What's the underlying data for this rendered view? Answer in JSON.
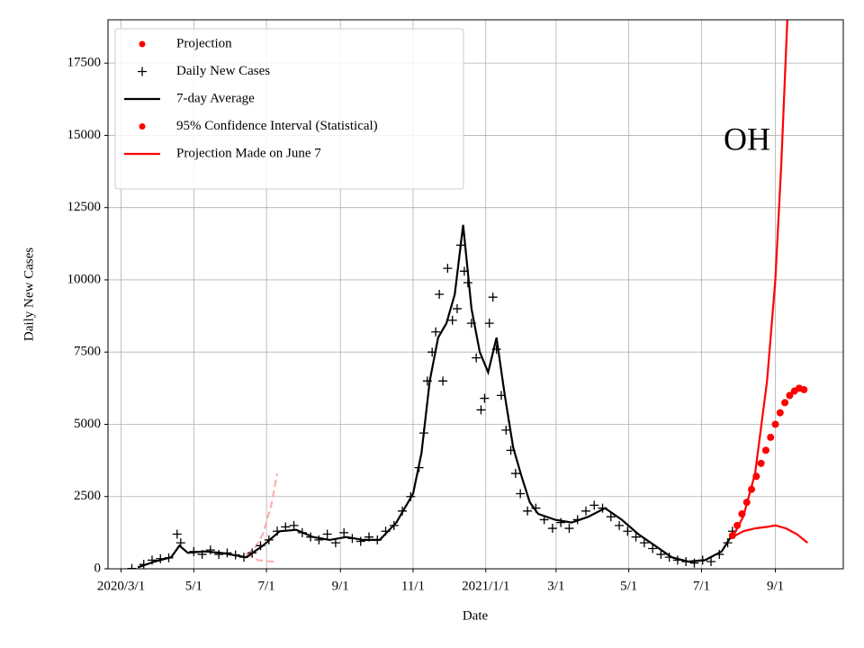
{
  "chart_data": {
    "type": "line",
    "annotation": "OH",
    "xlabel": "Date",
    "ylabel": "Daily New Cases",
    "xlim": [
      "2020-02-19",
      "2021-10-28"
    ],
    "ylim": [
      0,
      19000
    ],
    "xticks": [
      {
        "value": "2020-03-01",
        "label": "2020/3/1"
      },
      {
        "value": "2020-05-01",
        "label": "5/1"
      },
      {
        "value": "2020-07-01",
        "label": "7/1"
      },
      {
        "value": "2020-09-01",
        "label": "9/1"
      },
      {
        "value": "2020-11-01",
        "label": "11/1"
      },
      {
        "value": "2021-01-01",
        "label": "2021/1/1"
      },
      {
        "value": "2021-03-01",
        "label": "3/1"
      },
      {
        "value": "2021-05-01",
        "label": "5/1"
      },
      {
        "value": "2021-07-01",
        "label": "7/1"
      },
      {
        "value": "2021-09-01",
        "label": "9/1"
      }
    ],
    "yticks": [
      0,
      2500,
      5000,
      7500,
      10000,
      12500,
      15000,
      17500
    ],
    "grid": true,
    "legend": "upper left",
    "series": [
      {
        "name": "Projection",
        "color": "#ff0000",
        "marker": "dot",
        "x": [
          "2021-07-27",
          "2021-07-31",
          "2021-08-04",
          "2021-08-08",
          "2021-08-12",
          "2021-08-16",
          "2021-08-20",
          "2021-08-24",
          "2021-08-28",
          "2021-09-01",
          "2021-09-05",
          "2021-09-09",
          "2021-09-13",
          "2021-09-17",
          "2021-09-21",
          "2021-09-25"
        ],
        "values": [
          1150,
          1500,
          1900,
          2300,
          2750,
          3200,
          3650,
          4100,
          4550,
          5000,
          5400,
          5750,
          6000,
          6150,
          6250,
          6200
        ]
      },
      {
        "name": "Daily New Cases",
        "color": "#000000",
        "marker": "plus",
        "x": [
          "2020-03-10",
          "2020-03-20",
          "2020-03-27",
          "2020-04-03",
          "2020-04-10",
          "2020-04-17",
          "2020-04-20",
          "2020-05-01",
          "2020-05-08",
          "2020-05-15",
          "2020-05-22",
          "2020-05-29",
          "2020-06-05",
          "2020-06-12",
          "2020-06-19",
          "2020-06-26",
          "2020-07-03",
          "2020-07-10",
          "2020-07-17",
          "2020-07-24",
          "2020-07-31",
          "2020-08-07",
          "2020-08-14",
          "2020-08-21",
          "2020-08-28",
          "2020-09-04",
          "2020-09-11",
          "2020-09-18",
          "2020-09-25",
          "2020-10-02",
          "2020-10-09",
          "2020-10-16",
          "2020-10-23",
          "2020-10-30",
          "2020-11-06",
          "2020-11-10",
          "2020-11-13",
          "2020-11-17",
          "2020-11-20",
          "2020-11-23",
          "2020-11-26",
          "2020-11-30",
          "2020-12-04",
          "2020-12-08",
          "2020-12-11",
          "2020-12-14",
          "2020-12-17",
          "2020-12-20",
          "2020-12-24",
          "2020-12-28",
          "2020-12-31",
          "2021-01-04",
          "2021-01-07",
          "2021-01-10",
          "2021-01-14",
          "2021-01-18",
          "2021-01-22",
          "2021-01-26",
          "2021-01-30",
          "2021-02-05",
          "2021-02-12",
          "2021-02-19",
          "2021-02-26",
          "2021-03-05",
          "2021-03-12",
          "2021-03-19",
          "2021-03-26",
          "2021-04-02",
          "2021-04-09",
          "2021-04-16",
          "2021-04-23",
          "2021-04-30",
          "2021-05-07",
          "2021-05-14",
          "2021-05-21",
          "2021-05-28",
          "2021-06-04",
          "2021-06-11",
          "2021-06-18",
          "2021-06-25",
          "2021-07-02",
          "2021-07-09",
          "2021-07-16",
          "2021-07-23",
          "2021-07-27"
        ],
        "values": [
          10,
          150,
          300,
          350,
          380,
          1200,
          900,
          600,
          500,
          650,
          500,
          550,
          480,
          400,
          550,
          800,
          1000,
          1300,
          1450,
          1500,
          1250,
          1100,
          1000,
          1200,
          900,
          1250,
          1050,
          950,
          1100,
          1000,
          1300,
          1500,
          2000,
          2500,
          3500,
          4700,
          6500,
          7500,
          8200,
          9500,
          6500,
          10400,
          8600,
          9000,
          11200,
          10300,
          9900,
          8500,
          7300,
          5500,
          5900,
          8500,
          9400,
          7600,
          6000,
          4800,
          4100,
          3300,
          2600,
          2000,
          2100,
          1700,
          1400,
          1600,
          1400,
          1700,
          2000,
          2200,
          2100,
          1800,
          1500,
          1300,
          1100,
          900,
          700,
          500,
          400,
          300,
          250,
          200,
          300,
          250,
          500,
          900,
          1300
        ]
      },
      {
        "name": "7-day Average",
        "color": "#000000",
        "marker": "line",
        "x": [
          "2020-03-15",
          "2020-03-29",
          "2020-04-12",
          "2020-04-19",
          "2020-04-26",
          "2020-05-10",
          "2020-05-24",
          "2020-06-07",
          "2020-06-14",
          "2020-06-28",
          "2020-07-12",
          "2020-07-26",
          "2020-08-09",
          "2020-08-23",
          "2020-09-06",
          "2020-09-20",
          "2020-10-04",
          "2020-10-18",
          "2020-11-01",
          "2020-11-08",
          "2020-11-15",
          "2020-11-22",
          "2020-11-29",
          "2020-12-06",
          "2020-12-13",
          "2020-12-20",
          "2020-12-27",
          "2021-01-03",
          "2021-01-10",
          "2021-01-17",
          "2021-01-24",
          "2021-01-31",
          "2021-02-07",
          "2021-02-14",
          "2021-02-28",
          "2021-03-14",
          "2021-03-28",
          "2021-04-11",
          "2021-04-25",
          "2021-05-09",
          "2021-05-23",
          "2021-06-06",
          "2021-06-20",
          "2021-07-04",
          "2021-07-18",
          "2021-07-27"
        ],
        "values": [
          50,
          250,
          400,
          800,
          550,
          600,
          550,
          450,
          400,
          800,
          1300,
          1350,
          1100,
          1000,
          1100,
          1000,
          1000,
          1600,
          2600,
          4000,
          6500,
          8000,
          8500,
          9500,
          11900,
          9000,
          7500,
          6800,
          8000,
          6000,
          4200,
          3200,
          2300,
          1900,
          1700,
          1600,
          1800,
          2100,
          1700,
          1200,
          800,
          400,
          250,
          300,
          600,
          1200
        ]
      },
      {
        "name": "95% Confidence Interval (Statistical)",
        "color": "#ff0000",
        "marker": "dot",
        "x": [],
        "values": []
      },
      {
        "name": "Projection Made on June 7",
        "color": "#ff0000",
        "marker": "line",
        "x": [
          "2021-07-27",
          "2021-08-05",
          "2021-08-15",
          "2021-08-25",
          "2021-09-01",
          "2021-09-06",
          "2021-09-11",
          "2021-07-27",
          "2021-07-27",
          "2021-08-05",
          "2021-08-15",
          "2021-08-25",
          "2021-09-01",
          "2021-09-10",
          "2021-09-19",
          "2021-09-28"
        ],
        "values": [
          1100,
          1800,
          3300,
          6500,
          10000,
          14000,
          19000,
          null,
          1100,
          1300,
          1400,
          1450,
          1500,
          1400,
          1200,
          900
        ]
      },
      {
        "color": "#ffaaaa",
        "marker": "dashed",
        "x": [
          "2020-06-14",
          "2020-06-21",
          "2020-06-28",
          "2020-07-05",
          "2020-07-10",
          "2020-06-14",
          "2020-06-14",
          "2020-06-24",
          "2020-07-05",
          "2020-07-10"
        ],
        "values": [
          500,
          700,
          1200,
          2200,
          3300,
          null,
          500,
          300,
          250,
          250
        ]
      }
    ]
  }
}
